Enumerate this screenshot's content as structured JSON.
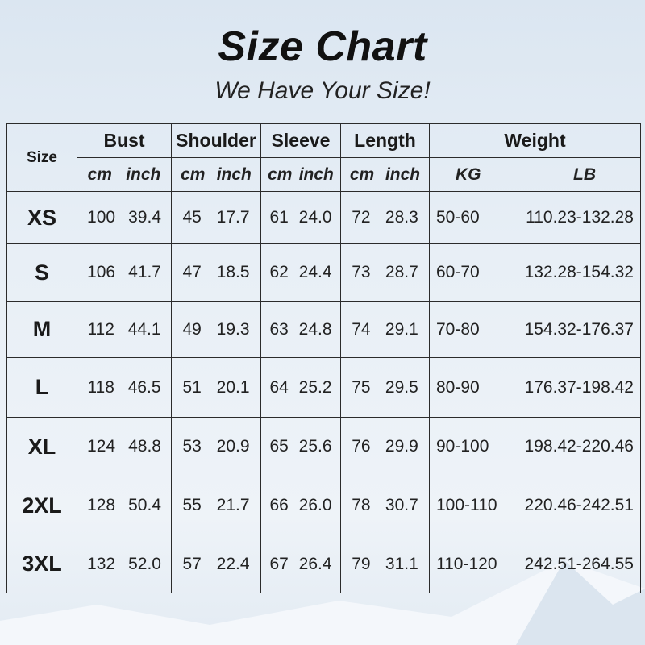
{
  "title": "Size Chart",
  "subtitle": "We Have Your Size!",
  "header": {
    "size": "Size",
    "groups": [
      "Bust",
      "Shoulder",
      "Sleeve",
      "Length",
      "Weight"
    ],
    "units": [
      [
        "cm",
        "inch"
      ],
      [
        "cm",
        "inch"
      ],
      [
        "cm",
        "inch"
      ],
      [
        "cm",
        "inch"
      ],
      [
        "KG",
        "LB"
      ]
    ]
  },
  "chart_data": {
    "type": "table",
    "columns": [
      "Size",
      "Bust cm",
      "Bust inch",
      "Shoulder cm",
      "Shoulder inch",
      "Sleeve cm",
      "Sleeve inch",
      "Length cm",
      "Length inch",
      "Weight KG",
      "Weight LB"
    ],
    "rows": [
      [
        "XS",
        "100",
        "39.4",
        "45",
        "17.7",
        "61",
        "24.0",
        "72",
        "28.3",
        "50-60",
        "110.23-132.28"
      ],
      [
        "S",
        "106",
        "41.7",
        "47",
        "18.5",
        "62",
        "24.4",
        "73",
        "28.7",
        "60-70",
        "132.28-154.32"
      ],
      [
        "M",
        "112",
        "44.1",
        "49",
        "19.3",
        "63",
        "24.8",
        "74",
        "29.1",
        "70-80",
        "154.32-176.37"
      ],
      [
        "L",
        "118",
        "46.5",
        "51",
        "20.1",
        "64",
        "25.2",
        "75",
        "29.5",
        "80-90",
        "176.37-198.42"
      ],
      [
        "XL",
        "124",
        "48.8",
        "53",
        "20.9",
        "65",
        "25.6",
        "76",
        "29.9",
        "90-100",
        "198.42-220.46"
      ],
      [
        "2XL",
        "128",
        "50.4",
        "55",
        "21.7",
        "66",
        "26.0",
        "78",
        "30.7",
        "100-110",
        "220.46-242.51"
      ],
      [
        "3XL",
        "132",
        "52.0",
        "57",
        "22.4",
        "67",
        "26.4",
        "79",
        "31.1",
        "110-120",
        "242.51-264.55"
      ]
    ]
  }
}
